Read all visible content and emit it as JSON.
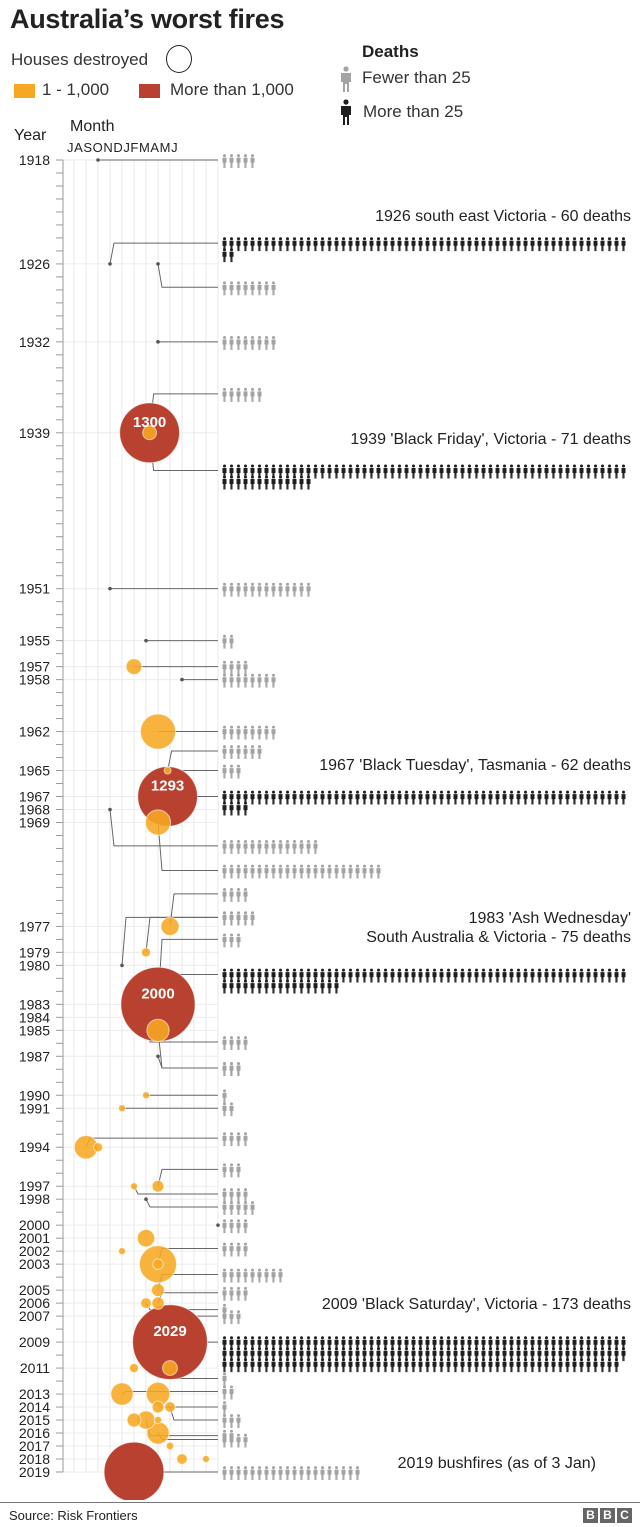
{
  "title": "Australia’s worst fires",
  "legend": {
    "houses_label": "Houses destroyed",
    "small_label": "1 - 1,000",
    "large_label": "More than 1,000",
    "small_color": "#f7a823",
    "large_color": "#b8422f",
    "deaths_heading": "Deaths",
    "fewer_label": "Fewer than 25",
    "more_label": "More than 25",
    "fewer_color": "#a3a3a3",
    "more_color": "#1e1e1e"
  },
  "axes": {
    "year_label": "Year",
    "month_label": "Month",
    "month_letters": "JASONDJFMAMJ"
  },
  "annotations": {
    "a1926": "1926 south east Victoria - 60 deaths",
    "a1939": "1939 'Black Friday', Victoria - 71 deaths",
    "a1967": "1967 'Black Tuesday', Tasmania - 62 deaths",
    "a1983_l1": "1983 'Ash Wednesday'",
    "a1983_l2": "South Australia & Victoria - 75 deaths",
    "a2009": "2009 'Black Saturday', Victoria - 173 deaths",
    "a2019": "2019 bushfires (as of 3 Jan)"
  },
  "footer": {
    "source": "Source: Risk Frontiers",
    "logo": [
      "B",
      "B",
      "C"
    ]
  },
  "chart_data": {
    "type": "scatter",
    "title": "Australia’s worst fires",
    "xlabel": "Month",
    "ylabel": "Year",
    "x_categories": [
      "J",
      "A",
      "S",
      "O",
      "N",
      "D",
      "J",
      "F",
      "M",
      "A",
      "M",
      "J"
    ],
    "ylim": [
      1918,
      2019
    ],
    "y_tick_labels": [
      "1918",
      "1926",
      "1932",
      "1939",
      "1951",
      "1955",
      "1957",
      "1958",
      "1962",
      "1965",
      "1967",
      "1968",
      "1969",
      "1977",
      "1979",
      "1980",
      "1983",
      "1984",
      "1985",
      "1987",
      "1990",
      "1991",
      "1994",
      "1997",
      "1998",
      "2000",
      "2001",
      "2002",
      "2003",
      "2005",
      "2006",
      "2007",
      "2009",
      "2011",
      "2013",
      "2014",
      "2015",
      "2016",
      "2017",
      "2018",
      "2019"
    ],
    "grid": true,
    "fires": [
      {
        "year": 1918.0,
        "month": 2.5,
        "houses": 0,
        "deaths": 5,
        "label_row": 1918.0
      },
      {
        "year": 1926.0,
        "month": 3.5,
        "houses": 0,
        "deaths": 60,
        "label_row": 1924.4
      },
      {
        "year": 1926.0,
        "month": 7.5,
        "houses": 0,
        "deaths": 8,
        "label_row": 1927.8
      },
      {
        "year": 1932.0,
        "month": 7.5,
        "houses": 0,
        "deaths": 8,
        "label_row": 1932.0
      },
      {
        "year": 1939.0,
        "month": 6.8,
        "houses": 1300,
        "deaths": 6,
        "label_row": 1936.0
      },
      {
        "year": 1939.0,
        "month": 6.8,
        "houses": 70,
        "deaths": 71,
        "label_row": 1941.9
      },
      {
        "year": 1951.0,
        "month": 3.5,
        "houses": 0,
        "deaths": 13,
        "label_row": 1951.0
      },
      {
        "year": 1955.0,
        "month": 6.5,
        "houses": 0,
        "deaths": 2,
        "label_row": 1955.0
      },
      {
        "year": 1957.0,
        "month": 5.5,
        "houses": 90,
        "deaths": 4,
        "label_row": 1957.0
      },
      {
        "year": 1958.0,
        "month": 9.5,
        "houses": 0,
        "deaths": 8,
        "label_row": 1958.0
      },
      {
        "year": 1962.0,
        "month": 7.5,
        "houses": 450,
        "deaths": 8,
        "label_row": 1962.0
      },
      {
        "year": 1965.0,
        "month": 8.3,
        "houses": 5,
        "deaths": 6,
        "label_row": 1963.5
      },
      {
        "year": 1965.0,
        "month": 8.3,
        "houses": 0,
        "deaths": 3,
        "label_row": 1965.0
      },
      {
        "year": 1967.0,
        "month": 8.3,
        "houses": 1293,
        "deaths": 62,
        "label_row": 1967.0
      },
      {
        "year": 1968.0,
        "month": 3.5,
        "houses": 0,
        "deaths": 14,
        "label_row": 1970.8
      },
      {
        "year": 1969.0,
        "month": 7.5,
        "houses": 230,
        "deaths": 23,
        "label_row": 1972.7
      },
      {
        "year": 1977.0,
        "month": 8.5,
        "houses": 120,
        "deaths": 4,
        "label_row": 1974.5
      },
      {
        "year": 1979.0,
        "month": 6.5,
        "houses": 30,
        "deaths": 5,
        "label_row": 1976.3
      },
      {
        "year": 1980.0,
        "month": 4.5,
        "houses": 0,
        "deaths": 5,
        "label_row": 1976.3
      },
      {
        "year": 1983.0,
        "month": 7.5,
        "houses": 2000,
        "deaths": 3,
        "label_row": 1978.0
      },
      {
        "year": 1983.0,
        "month": 8.5,
        "houses": 0,
        "deaths": 75,
        "label_row": 1980.7
      },
      {
        "year": 1984.0,
        "month": 6.5,
        "houses": 0,
        "deaths": 4,
        "label_row": 1985.9
      },
      {
        "year": 1985.0,
        "month": 7.5,
        "houses": 180,
        "deaths": 3,
        "label_row": 1987.9
      },
      {
        "year": 1987.0,
        "month": 7.5,
        "houses": 0,
        "deaths": 3,
        "label_row": 1987.9
      },
      {
        "year": 1990.0,
        "month": 6.5,
        "houses": 15,
        "deaths": 1,
        "label_row": 1990.0
      },
      {
        "year": 1991.0,
        "month": 4.5,
        "houses": 10,
        "deaths": 2,
        "label_row": 1991.0
      },
      {
        "year": 1994.0,
        "month": 1.5,
        "houses": 200,
        "deaths": 4,
        "label_row": 1993.3
      },
      {
        "year": 1994.0,
        "month": 2.5,
        "houses": 30,
        "deaths": 0,
        "label_row": 1994.0
      },
      {
        "year": 1997.0,
        "month": 7.5,
        "houses": 50,
        "deaths": 3,
        "label_row": 1995.7
      },
      {
        "year": 1997.0,
        "month": 5.5,
        "houses": 10,
        "deaths": 4,
        "label_row": 1997.6
      },
      {
        "year": 1998.0,
        "month": 6.5,
        "houses": 0,
        "deaths": 5,
        "label_row": 1998.6
      },
      {
        "year": 2000.0,
        "month": 12.5,
        "houses": 0,
        "deaths": 4,
        "label_row": 2000.0
      },
      {
        "year": 2001.0,
        "month": 6.5,
        "houses": 110,
        "deaths": 0,
        "label_row": 2001.0
      },
      {
        "year": 2002.0,
        "month": 4.5,
        "houses": 5,
        "deaths": 0,
        "label_row": 2002.0
      },
      {
        "year": 2003.0,
        "month": 7.5,
        "houses": 500,
        "deaths": 4,
        "label_row": 2001.8
      },
      {
        "year": 2003.0,
        "month": 7.5,
        "houses": 40,
        "deaths": 0,
        "label_row": 2003.0
      },
      {
        "year": 2005.0,
        "month": 7.5,
        "houses": 60,
        "deaths": 9,
        "label_row": 2003.8
      },
      {
        "year": 2006.0,
        "month": 7.5,
        "houses": 55,
        "deaths": 4,
        "label_row": 2005.2
      },
      {
        "year": 2006.0,
        "month": 6.5,
        "houses": 40,
        "deaths": 1,
        "label_row": 2006.5
      },
      {
        "year": 2007.0,
        "month": 6.5,
        "houses": 0,
        "deaths": 3,
        "label_row": 2007.0
      },
      {
        "year": 2009.0,
        "month": 8.5,
        "houses": 2029,
        "deaths": 173,
        "label_row": 2009.0
      },
      {
        "year": 2011.0,
        "month": 8.5,
        "houses": 80,
        "deaths": 1,
        "label_row": 2011.8
      },
      {
        "year": 2011.0,
        "month": 5.5,
        "houses": 30,
        "deaths": 0,
        "label_row": 2011.0
      },
      {
        "year": 2013.0,
        "month": 4.5,
        "houses": 180,
        "deaths": 2,
        "label_row": 2012.8
      },
      {
        "year": 2013.0,
        "month": 7.5,
        "houses": 200,
        "deaths": 0,
        "label_row": 2013.0
      },
      {
        "year": 2014.0,
        "month": 7.5,
        "houses": 50,
        "deaths": 1,
        "label_row": 2014.0
      },
      {
        "year": 2014.0,
        "month": 8.5,
        "houses": 40,
        "deaths": 3,
        "label_row": 2015.0
      },
      {
        "year": 2015.0,
        "month": 5.5,
        "houses": 70,
        "deaths": 0,
        "label_row": 2015.0
      },
      {
        "year": 2015.0,
        "month": 6.5,
        "houses": 120,
        "deaths": 2,
        "label_row": 2016.2
      },
      {
        "year": 2015.0,
        "month": 7.5,
        "houses": 20,
        "deaths": 0,
        "label_row": 2015.0
      },
      {
        "year": 2016.0,
        "month": 7.5,
        "houses": 180,
        "deaths": 4,
        "label_row": 2016.5
      },
      {
        "year": 2017.0,
        "month": 8.5,
        "houses": 20,
        "deaths": 0,
        "label_row": 2017.0
      },
      {
        "year": 2018.0,
        "month": 9.5,
        "houses": 40,
        "deaths": 0,
        "label_row": 2018.0
      },
      {
        "year": 2018.0,
        "month": 11.5,
        "houses": 2,
        "deaths": 0,
        "label_row": 2018.0
      },
      {
        "year": 2019.0,
        "month": 5.5,
        "houses": 1300,
        "deaths": 20,
        "label_row": 2019.0
      }
    ]
  }
}
